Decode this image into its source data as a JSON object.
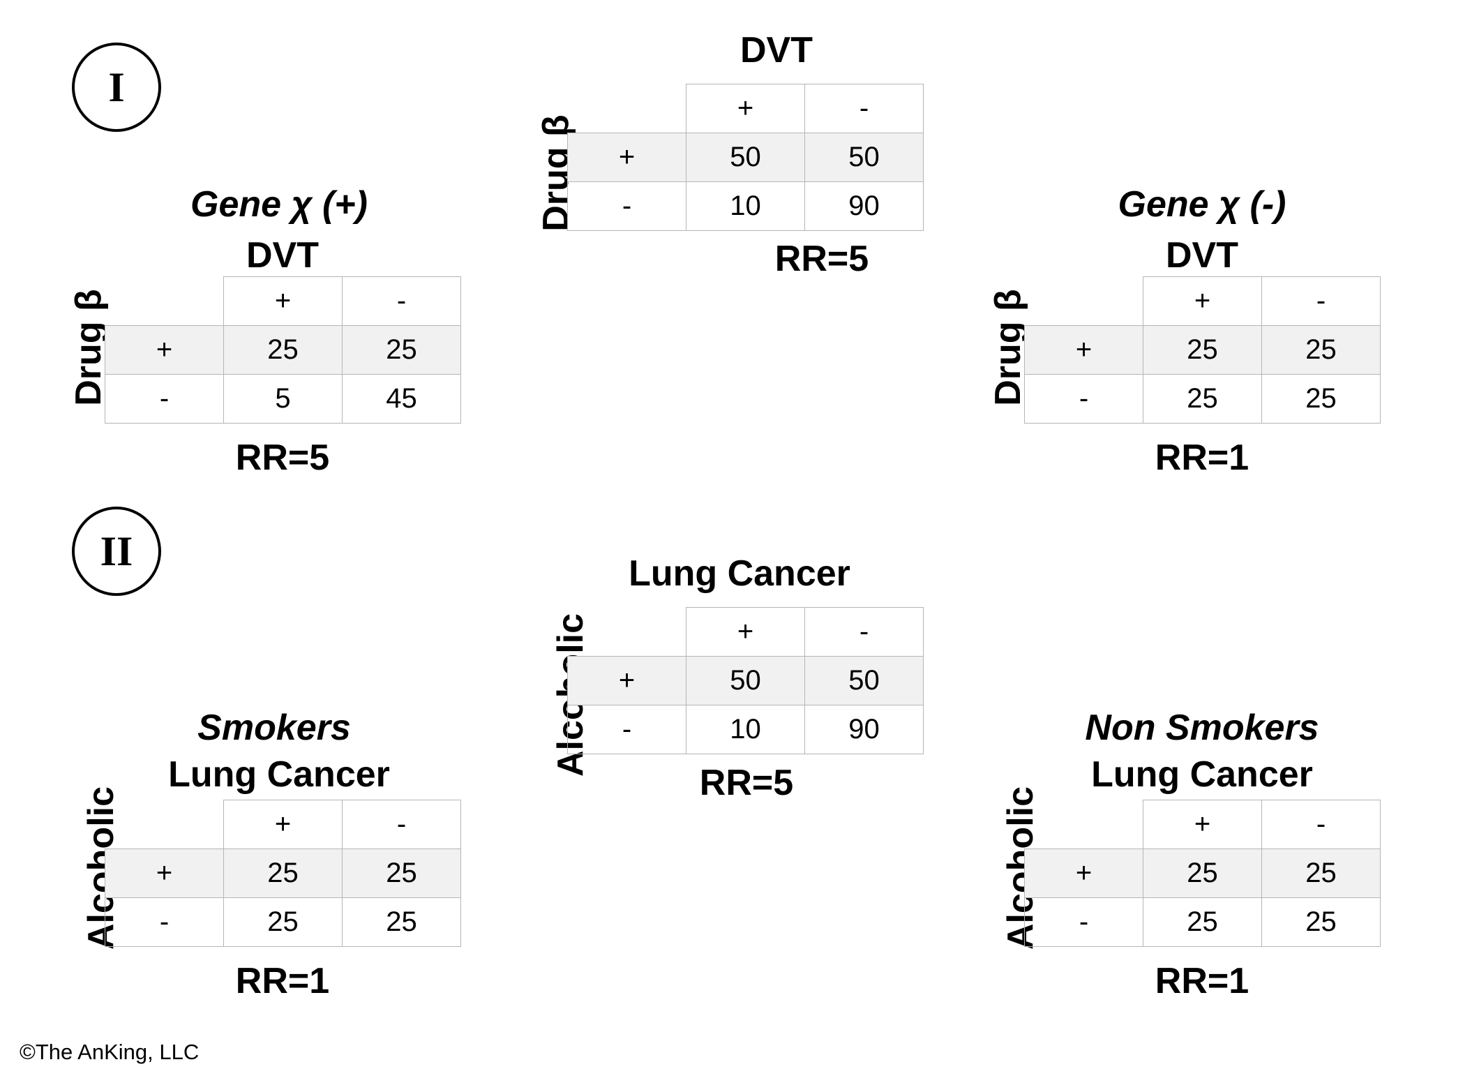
{
  "section_I": {
    "numeral": "I",
    "overall": {
      "outcome": "DVT",
      "exposure": "Drug β",
      "col_headers": [
        "+",
        "-"
      ],
      "row_headers": [
        "+",
        "-"
      ],
      "rows": [
        [
          "50",
          "50"
        ],
        [
          "10",
          "90"
        ]
      ],
      "rr": "RR=5"
    },
    "stratum_pos": {
      "stratum": "Gene χ (+)",
      "outcome": "DVT",
      "exposure": "Drug β",
      "col_headers": [
        "+",
        "-"
      ],
      "row_headers": [
        "+",
        "-"
      ],
      "rows": [
        [
          "25",
          "25"
        ],
        [
          "5",
          "45"
        ]
      ],
      "rr": "RR=5"
    },
    "stratum_neg": {
      "stratum": "Gene χ (-)",
      "outcome": "DVT",
      "exposure": "Drug β",
      "col_headers": [
        "+",
        "-"
      ],
      "row_headers": [
        "+",
        "-"
      ],
      "rows": [
        [
          "25",
          "25"
        ],
        [
          "25",
          "25"
        ]
      ],
      "rr": "RR=1"
    }
  },
  "section_II": {
    "numeral": "II",
    "overall": {
      "outcome": "Lung Cancer",
      "exposure": "Alcoholic",
      "col_headers": [
        "+",
        "-"
      ],
      "row_headers": [
        "+",
        "-"
      ],
      "rows": [
        [
          "50",
          "50"
        ],
        [
          "10",
          "90"
        ]
      ],
      "rr": "RR=5"
    },
    "stratum_pos": {
      "stratum": "Smokers",
      "outcome": "Lung Cancer",
      "exposure": "Alcoholic",
      "col_headers": [
        "+",
        "-"
      ],
      "row_headers": [
        "+",
        "-"
      ],
      "rows": [
        [
          "25",
          "25"
        ],
        [
          "25",
          "25"
        ]
      ],
      "rr": "RR=1"
    },
    "stratum_neg": {
      "stratum": "Non Smokers",
      "outcome": "Lung Cancer",
      "exposure": "Alcoholic",
      "col_headers": [
        "+",
        "-"
      ],
      "row_headers": [
        "+",
        "-"
      ],
      "rows": [
        [
          "25",
          "25"
        ],
        [
          "25",
          "25"
        ]
      ],
      "rr": "RR=1"
    }
  },
  "copyright": "©The AnKing, LLC"
}
